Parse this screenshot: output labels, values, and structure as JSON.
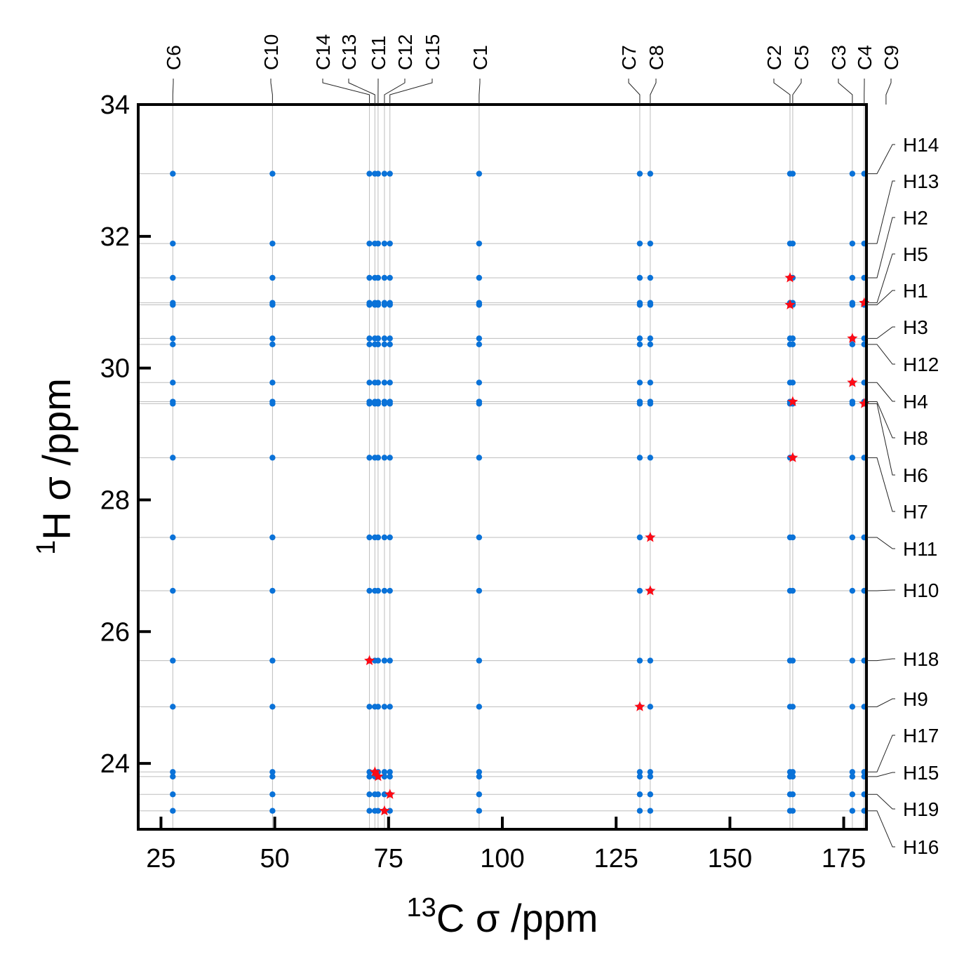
{
  "chart_data": {
    "type": "scatter",
    "xlabel": {
      "sup": "13",
      "main": "C σ /ppm"
    },
    "ylabel": {
      "sup": "1",
      "main": "H σ /ppm"
    },
    "xlim": [
      20,
      180
    ],
    "ylim": [
      23,
      34
    ],
    "xticks": [
      25,
      50,
      75,
      100,
      125,
      150,
      175
    ],
    "yticks": [
      24,
      26,
      28,
      30,
      32,
      34
    ],
    "grid": "at each labelled carbon and hydrogen shift",
    "colors": {
      "dots": "#0a72d8",
      "stars": "#ff0a14",
      "grid": "#bdbdbd"
    },
    "carbons": [
      {
        "label": "C6",
        "ppm": 27.6
      },
      {
        "label": "C10",
        "ppm": 49.5
      },
      {
        "label": "C14",
        "ppm": 70.8
      },
      {
        "label": "C13",
        "ppm": 72.0
      },
      {
        "label": "C11",
        "ppm": 72.7
      },
      {
        "label": "C12",
        "ppm": 74.1
      },
      {
        "label": "C15",
        "ppm": 75.3
      },
      {
        "label": "C1",
        "ppm": 94.9
      },
      {
        "label": "C7",
        "ppm": 130.2
      },
      {
        "label": "C8",
        "ppm": 132.5
      },
      {
        "label": "C2",
        "ppm": 163.2
      },
      {
        "label": "C5",
        "ppm": 163.8
      },
      {
        "label": "C3",
        "ppm": 176.9
      },
      {
        "label": "C4",
        "ppm": 179.5
      },
      {
        "label": "C9",
        "ppm": 184.3
      }
    ],
    "hydrogens": [
      {
        "label": "H14",
        "ppm": 32.95
      },
      {
        "label": "H13",
        "ppm": 31.89
      },
      {
        "label": "H2",
        "ppm": 31.37
      },
      {
        "label": "H5",
        "ppm": 30.99
      },
      {
        "label": "H1",
        "ppm": 30.96
      },
      {
        "label": "H3",
        "ppm": 30.45
      },
      {
        "label": "H12",
        "ppm": 30.36
      },
      {
        "label": "H4",
        "ppm": 29.78
      },
      {
        "label": "H8",
        "ppm": 29.49
      },
      {
        "label": "H6",
        "ppm": 29.46
      },
      {
        "label": "H7",
        "ppm": 28.64
      },
      {
        "label": "H11",
        "ppm": 27.43
      },
      {
        "label": "H10",
        "ppm": 26.62
      },
      {
        "label": "H18",
        "ppm": 25.56
      },
      {
        "label": "H9",
        "ppm": 24.86
      },
      {
        "label": "H17",
        "ppm": 23.87
      },
      {
        "label": "H15",
        "ppm": 23.8
      },
      {
        "label": "H19",
        "ppm": 23.53
      },
      {
        "label": "H16",
        "ppm": 23.28
      }
    ],
    "marked_pairs": [
      [
        "C2",
        "H2"
      ],
      [
        "C2",
        "H1"
      ],
      [
        "C4",
        "H5"
      ],
      [
        "C3",
        "H3"
      ],
      [
        "C3",
        "H4"
      ],
      [
        "C5",
        "H8"
      ],
      [
        "C4",
        "H6"
      ],
      [
        "C5",
        "H7"
      ],
      [
        "C8",
        "H11"
      ],
      [
        "C8",
        "H10"
      ],
      [
        "C14",
        "H18"
      ],
      [
        "C7",
        "H9"
      ],
      [
        "C13",
        "H17"
      ],
      [
        "C11",
        "H15"
      ],
      [
        "C15",
        "H19"
      ],
      [
        "C12",
        "H16"
      ]
    ]
  }
}
